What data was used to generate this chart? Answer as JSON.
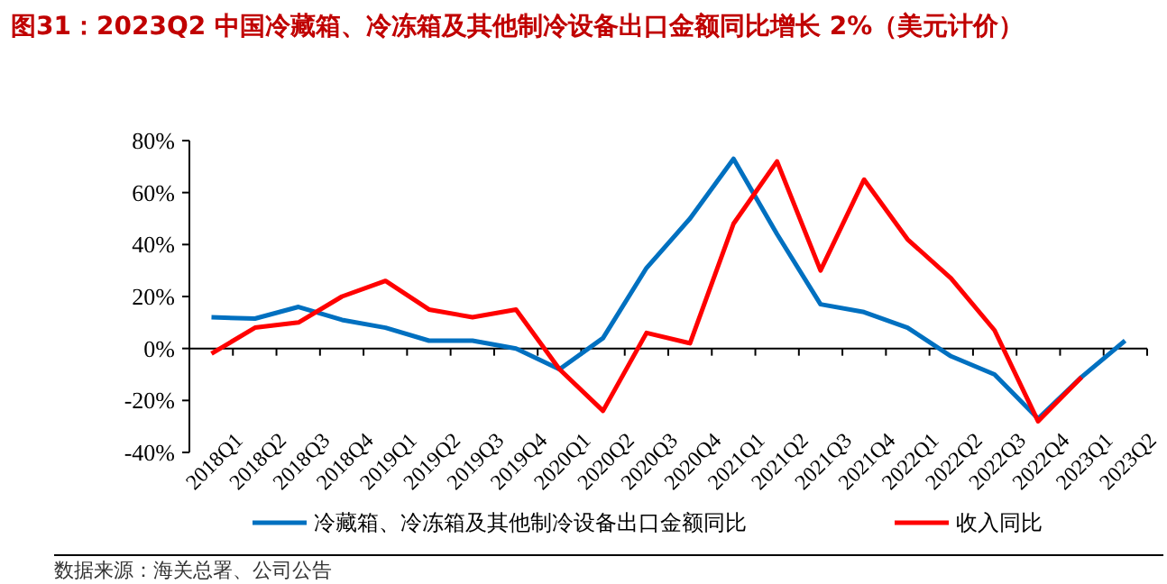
{
  "chart_data": {
    "type": "line",
    "title": "图31：2023Q2 中国冷藏箱、冷冻箱及其他制冷设备出口金额同比增长 2%（美元计价）",
    "categories": [
      "2018Q1",
      "2018Q2",
      "2018Q3",
      "2018Q4",
      "2019Q1",
      "2019Q2",
      "2019Q3",
      "2019Q4",
      "2020Q1",
      "2020Q2",
      "2020Q3",
      "2020Q4",
      "2021Q1",
      "2021Q2",
      "2021Q3",
      "2021Q4",
      "2022Q1",
      "2022Q2",
      "2022Q3",
      "2022Q4",
      "2023Q1",
      "2023Q2"
    ],
    "series": [
      {
        "name": "冷藏箱、冷冻箱及其他制冷设备出口金额同比",
        "color": "#0070c0",
        "values": [
          12,
          11.5,
          16,
          11,
          8,
          3,
          3,
          0,
          -8,
          4,
          31,
          50,
          73,
          44,
          17,
          14,
          8,
          -3,
          -10,
          -27,
          -11,
          3
        ]
      },
      {
        "name": "收入同比",
        "color": "#ff0000",
        "values": [
          -2,
          8,
          10,
          20,
          26,
          15,
          12,
          15,
          -8,
          -24,
          6,
          2,
          48,
          72,
          30,
          65,
          42,
          27,
          7,
          -28,
          -11,
          null
        ]
      }
    ],
    "ylim": [
      -40,
      80
    ],
    "yticks": [
      {
        "value": -40,
        "label": "-40%"
      },
      {
        "value": -20,
        "label": "-20%"
      },
      {
        "value": 0,
        "label": "0%"
      },
      {
        "value": 20,
        "label": "20%"
      },
      {
        "value": 40,
        "label": "40%"
      },
      {
        "value": 60,
        "label": "60%"
      },
      {
        "value": 80,
        "label": "80%"
      }
    ],
    "grid": false,
    "legend": "bottom",
    "ref_lines": [
      {
        "axis": "y",
        "value": 0,
        "color": "#000000"
      }
    ],
    "annotations": [
      "数据来源：海关总署、公司公告"
    ]
  }
}
